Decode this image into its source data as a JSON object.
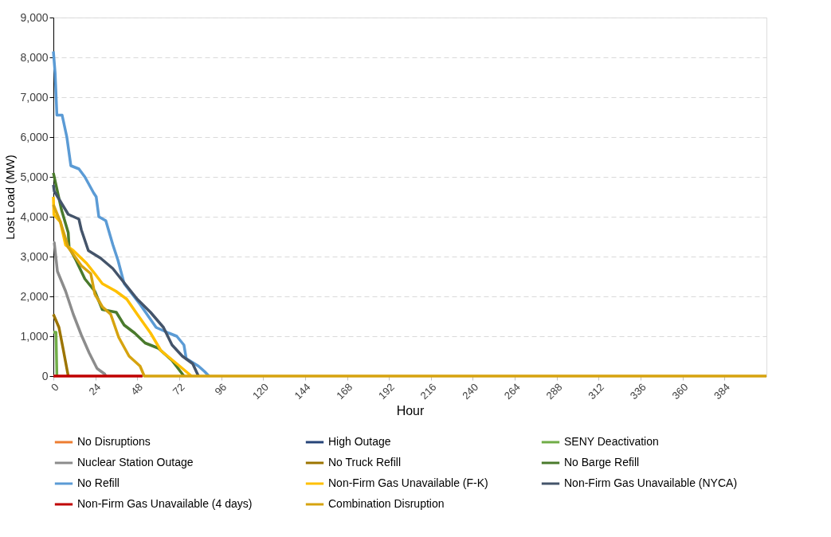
{
  "chart_data": {
    "type": "line",
    "xlabel": "Hour",
    "ylabel": "Lost Load (MW)",
    "xlim": [
      0,
      408
    ],
    "xticks": [
      0,
      24,
      48,
      72,
      96,
      120,
      144,
      168,
      192,
      216,
      240,
      264,
      288,
      312,
      336,
      360,
      384
    ],
    "ylim": [
      0,
      9000
    ],
    "yticks": [
      0,
      {
        "value": 1000,
        "label": "1,000"
      },
      {
        "value": 2000,
        "label": "2,000"
      },
      {
        "value": 3000,
        "label": "3,000"
      },
      {
        "value": 4000,
        "label": "4,000"
      },
      {
        "value": 5000,
        "label": "5,000"
      },
      {
        "value": 6000,
        "label": "6,000"
      },
      {
        "value": 7000,
        "label": "7,000"
      },
      {
        "value": 8000,
        "label": "8,000"
      },
      {
        "value": 9000,
        "label": "9,000"
      }
    ],
    "grid": "y",
    "legend": "bottom",
    "marker": "none",
    "line_style": "solid",
    "series": [
      {
        "name": "No Disruptions",
        "color": "#ed7d31"
      },
      {
        "name": "High Outage",
        "color": "#264478"
      },
      {
        "name": "SENY Deactivation",
        "color": "#70ad47",
        "x": [
          0,
          1.5,
          2
        ],
        "values": [
          1100,
          1100,
          0
        ]
      },
      {
        "name": "Nuclear Station Outage",
        "color": "#8c8c8c",
        "x": [
          0,
          0.5,
          2.3,
          7,
          11.4,
          16,
          20.5,
          25,
          29.4,
          30
        ],
        "values": [
          3350,
          3350,
          2630,
          2130,
          1550,
          1030,
          580,
          190,
          50,
          0
        ]
      },
      {
        "name": "No Truck Refill",
        "color": "#9c7400",
        "x": [
          0,
          3.2,
          5.5,
          8.5
        ],
        "values": [
          1550,
          1220,
          700,
          0
        ]
      },
      {
        "name": "No Barge Refill",
        "color": "#4a7a2c",
        "x": [
          0,
          4.6,
          8.5,
          9,
          13,
          18,
          23.7,
          28,
          36,
          40.5,
          46.5,
          52.5,
          60,
          67.9,
          74.7
        ],
        "values": [
          5100,
          4180,
          3600,
          3230,
          2900,
          2440,
          2130,
          1670,
          1600,
          1280,
          1080,
          830,
          700,
          390,
          0
        ]
      },
      {
        "name": "No Refill",
        "color": "#5b9bd5",
        "x": [
          0,
          1,
          2,
          5,
          7.7,
          10,
          14.6,
          18,
          23,
          24.5,
          26,
          30,
          34,
          37,
          40.5,
          49.6,
          58.8,
          66,
          70.6,
          74.7,
          76,
          83,
          86.6,
          89
        ],
        "values": [
          8150,
          7600,
          6550,
          6550,
          6000,
          5280,
          5200,
          5000,
          4600,
          4500,
          4000,
          3900,
          3300,
          2900,
          2320,
          1800,
          1220,
          1080,
          1000,
          780,
          440,
          250,
          110,
          0
        ]
      },
      {
        "name": "Non-Firm Gas Unavailable (F-K)",
        "color": "#ffc000",
        "x": [
          0,
          0.3,
          4,
          7,
          11.4,
          19,
          23.7,
          28,
          35.8,
          42,
          48,
          55.6,
          61.5,
          70.6,
          79
        ],
        "values": [
          4500,
          4050,
          3870,
          3290,
          3150,
          2830,
          2570,
          2320,
          2130,
          1930,
          1550,
          1080,
          640,
          310,
          0
        ]
      },
      {
        "name": "Non-Firm Gas Unavailable (NYCA)",
        "color": "#44546a",
        "x": [
          0,
          0.5,
          8.5,
          14.6,
          16,
          20,
          27,
          34,
          38.7,
          48,
          55.6,
          63,
          67.9,
          73.8,
          79.7,
          83
        ],
        "values": [
          4800,
          4640,
          4060,
          3940,
          3670,
          3150,
          2960,
          2700,
          2440,
          1930,
          1600,
          1220,
          780,
          500,
          310,
          0
        ]
      },
      {
        "name": "Non-Firm Gas Unavailable (4 days)",
        "color": "#c00000",
        "x": [
          0,
          51
        ],
        "values": [
          0,
          0
        ]
      },
      {
        "name": "Combination Disruption",
        "color": "#d6a30f",
        "x": [
          0,
          4,
          8.5,
          16,
          21.4,
          23.7,
          28,
          32.8,
          37.4,
          43.3,
          49.6,
          52,
          408
        ],
        "values": [
          4300,
          3870,
          3230,
          2770,
          2570,
          2060,
          1740,
          1550,
          970,
          500,
          250,
          0,
          0
        ]
      }
    ]
  }
}
